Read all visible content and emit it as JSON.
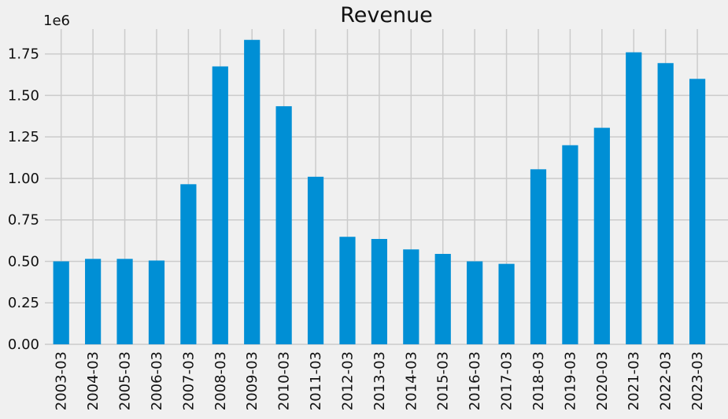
{
  "chart_data": {
    "type": "bar",
    "title": "Revenue",
    "xlabel": "",
    "ylabel": "",
    "y_offset_label": "1e6",
    "categories": [
      "2003-03",
      "2004-03",
      "2005-03",
      "2006-03",
      "2007-03",
      "2008-03",
      "2009-03",
      "2010-03",
      "2011-03",
      "2012-03",
      "2013-03",
      "2014-03",
      "2015-03",
      "2016-03",
      "2017-03",
      "2018-03",
      "2019-03",
      "2020-03",
      "2021-03",
      "2022-03",
      "2023-03"
    ],
    "values": [
      500000,
      515000,
      515000,
      505000,
      965000,
      1675000,
      1835000,
      1435000,
      1010000,
      648000,
      635000,
      572000,
      545000,
      500000,
      485000,
      1055000,
      1200000,
      1305000,
      1760000,
      1695000,
      1600000
    ],
    "ylim": [
      0,
      1900000
    ],
    "yticks": [
      0,
      250000,
      500000,
      750000,
      1000000,
      1250000,
      1500000,
      1750000
    ],
    "ytick_labels": [
      "0.00",
      "0.25",
      "0.50",
      "0.75",
      "1.00",
      "1.25",
      "1.50",
      "1.75"
    ],
    "grid": true,
    "colors": {
      "bar": "#008fd5",
      "background": "#f0f0f0",
      "grid": "#cbcbcb"
    }
  }
}
